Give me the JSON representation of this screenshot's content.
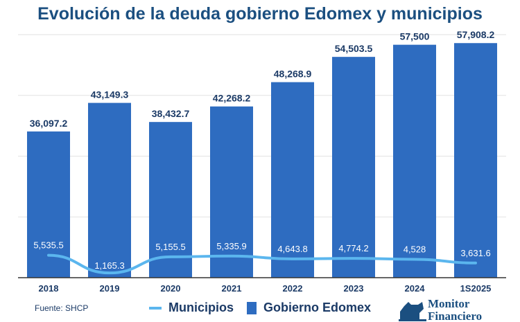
{
  "chart_data": {
    "type": "bar",
    "title": "Evolución de la deuda gobierno Edomex y municipios",
    "categories": [
      "2018",
      "2019",
      "2020",
      "2021",
      "2022",
      "2023",
      "2024",
      "1S2025"
    ],
    "series": [
      {
        "name": "Gobierno Edomex",
        "type": "bar",
        "color": "#2e6cc0",
        "values": [
          36097.2,
          43149.3,
          38432.7,
          42268.2,
          48268.9,
          54503.5,
          57500,
          57908.2
        ],
        "labels": [
          "36,097.2",
          "43,149.3",
          "38,432.7",
          "42,268.2",
          "48,268.9",
          "54,503.5",
          "57,500",
          "57,908.2"
        ]
      },
      {
        "name": "Municipios",
        "type": "line",
        "color": "#5bb6ee",
        "values": [
          5535.5,
          1165.3,
          5155.5,
          5335.9,
          4643.8,
          4774.2,
          4528,
          3631.6
        ],
        "labels": [
          "5,535.5",
          "1,165.3",
          "5,155.5",
          "5,335.9",
          "4,643.8",
          "4,774.2",
          "4,528",
          "3,631.6"
        ]
      }
    ],
    "ylim": [
      0,
      60000
    ],
    "grid": true,
    "legend": "bottom",
    "xlabel": "",
    "ylabel": ""
  },
  "source": "Fuente: SHCP",
  "logo_text": "Monitor Financiero"
}
